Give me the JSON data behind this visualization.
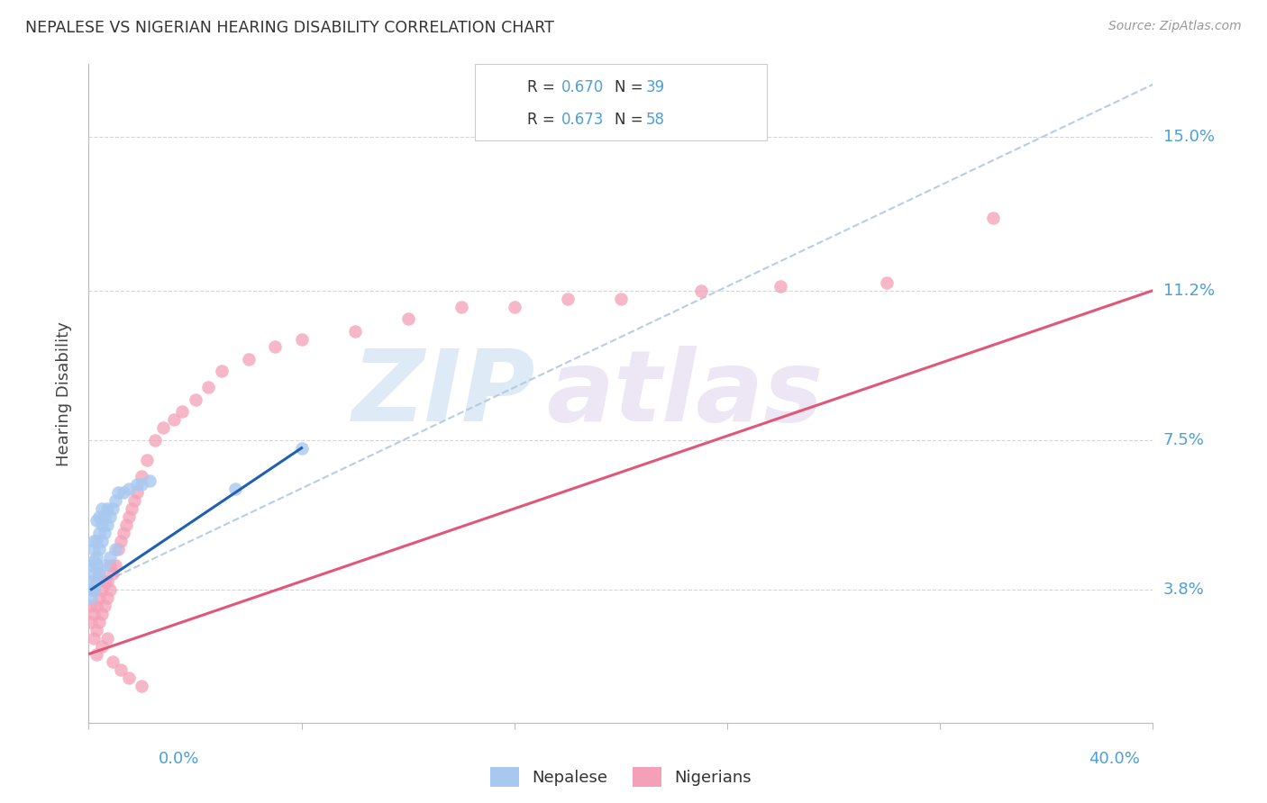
{
  "title": "NEPALESE VS NIGERIAN HEARING DISABILITY CORRELATION CHART",
  "source": "Source: ZipAtlas.com",
  "ylabel": "Hearing Disability",
  "ytick_labels": [
    "3.8%",
    "7.5%",
    "11.2%",
    "15.0%"
  ],
  "ytick_values": [
    0.038,
    0.075,
    0.112,
    0.15
  ],
  "xlim": [
    0.0,
    0.4
  ],
  "ylim": [
    0.005,
    0.168
  ],
  "nepalese_color": "#A8C8F0",
  "nigerian_color": "#F4A0B8",
  "nepalese_line_color": "#2060B0",
  "nigerian_line_color": "#E05878",
  "dashed_line_color": "#B0C8E0",
  "legend_R_nepalese": "0.670",
  "legend_N_nepalese": "39",
  "legend_R_nigerian": "0.673",
  "legend_N_nigerian": "58",
  "watermark_zip": "ZIP",
  "watermark_atlas": "atlas",
  "background_color": "#FFFFFF",
  "grid_color": "#CCCCCC",
  "nepalese_x": [
    0.001,
    0.001,
    0.001,
    0.002,
    0.002,
    0.002,
    0.002,
    0.003,
    0.003,
    0.003,
    0.003,
    0.004,
    0.004,
    0.004,
    0.005,
    0.005,
    0.005,
    0.006,
    0.006,
    0.007,
    0.007,
    0.008,
    0.009,
    0.01,
    0.011,
    0.013,
    0.015,
    0.018,
    0.02,
    0.023,
    0.001,
    0.002,
    0.003,
    0.004,
    0.006,
    0.008,
    0.01,
    0.055,
    0.08
  ],
  "nepalese_y": [
    0.038,
    0.04,
    0.044,
    0.042,
    0.045,
    0.048,
    0.05,
    0.044,
    0.046,
    0.05,
    0.055,
    0.048,
    0.052,
    0.056,
    0.05,
    0.054,
    0.058,
    0.052,
    0.056,
    0.054,
    0.058,
    0.056,
    0.058,
    0.06,
    0.062,
    0.062,
    0.063,
    0.064,
    0.064,
    0.065,
    0.036,
    0.038,
    0.04,
    0.042,
    0.044,
    0.046,
    0.048,
    0.063,
    0.073
  ],
  "nigerian_x": [
    0.001,
    0.001,
    0.002,
    0.002,
    0.002,
    0.003,
    0.003,
    0.003,
    0.004,
    0.004,
    0.004,
    0.005,
    0.005,
    0.006,
    0.006,
    0.007,
    0.007,
    0.008,
    0.008,
    0.009,
    0.01,
    0.011,
    0.012,
    0.013,
    0.014,
    0.015,
    0.016,
    0.017,
    0.018,
    0.02,
    0.022,
    0.025,
    0.028,
    0.032,
    0.035,
    0.04,
    0.045,
    0.05,
    0.06,
    0.07,
    0.08,
    0.1,
    0.12,
    0.14,
    0.16,
    0.18,
    0.2,
    0.23,
    0.26,
    0.3,
    0.003,
    0.005,
    0.007,
    0.009,
    0.012,
    0.015,
    0.02,
    0.34
  ],
  "nigerian_y": [
    0.03,
    0.034,
    0.026,
    0.032,
    0.038,
    0.028,
    0.034,
    0.04,
    0.03,
    0.036,
    0.042,
    0.032,
    0.038,
    0.034,
    0.04,
    0.036,
    0.04,
    0.038,
    0.044,
    0.042,
    0.044,
    0.048,
    0.05,
    0.052,
    0.054,
    0.056,
    0.058,
    0.06,
    0.062,
    0.066,
    0.07,
    0.075,
    0.078,
    0.08,
    0.082,
    0.085,
    0.088,
    0.092,
    0.095,
    0.098,
    0.1,
    0.102,
    0.105,
    0.108,
    0.108,
    0.11,
    0.11,
    0.112,
    0.113,
    0.114,
    0.022,
    0.024,
    0.026,
    0.02,
    0.018,
    0.016,
    0.014,
    0.13
  ],
  "nep_line_x": [
    0.001,
    0.08
  ],
  "nep_line_y": [
    0.038,
    0.073
  ],
  "nig_line_x": [
    0.0,
    0.4
  ],
  "nig_line_y": [
    0.022,
    0.112
  ],
  "diag_line_x": [
    0.0,
    0.4
  ],
  "diag_line_y": [
    0.038,
    0.163
  ]
}
